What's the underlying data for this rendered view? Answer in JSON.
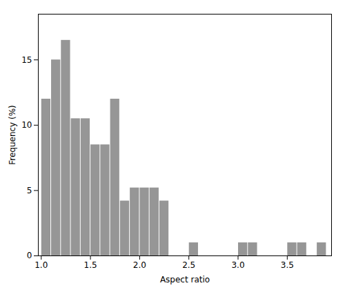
{
  "chart_data": {
    "type": "histogram",
    "bins": [
      1.0,
      1.1,
      1.2,
      1.3,
      1.4,
      1.5,
      1.6,
      1.7,
      1.8,
      1.9,
      2.0,
      2.1,
      2.2,
      2.3,
      2.4,
      2.5,
      2.6,
      2.7,
      2.8,
      2.9,
      3.0,
      3.1,
      3.2,
      3.3,
      3.4,
      3.5,
      3.6,
      3.7,
      3.8,
      3.9
    ],
    "values": [
      12,
      15,
      16.5,
      10.5,
      10.5,
      8.5,
      8.5,
      12,
      4.2,
      5.2,
      5.2,
      5.2,
      4.2,
      0,
      0,
      1,
      0,
      0,
      0,
      0,
      1,
      1,
      0,
      0,
      0,
      1,
      1,
      0,
      1
    ],
    "color": "#969696",
    "xlabel": "Aspect ratio",
    "ylabel": "Frequency (%)",
    "xlim": [
      0.97,
      3.95
    ],
    "ylim": [
      0,
      18.5
    ],
    "xticks": [
      {
        "value": 1.0,
        "label": "1.0"
      },
      1.5,
      {
        "value": 2.0,
        "label": "2.0"
      },
      2.5,
      {
        "value": 3.0,
        "label": "3.0"
      },
      3.5
    ],
    "yticks": [
      0,
      5,
      10,
      15
    ],
    "grid": false
  }
}
